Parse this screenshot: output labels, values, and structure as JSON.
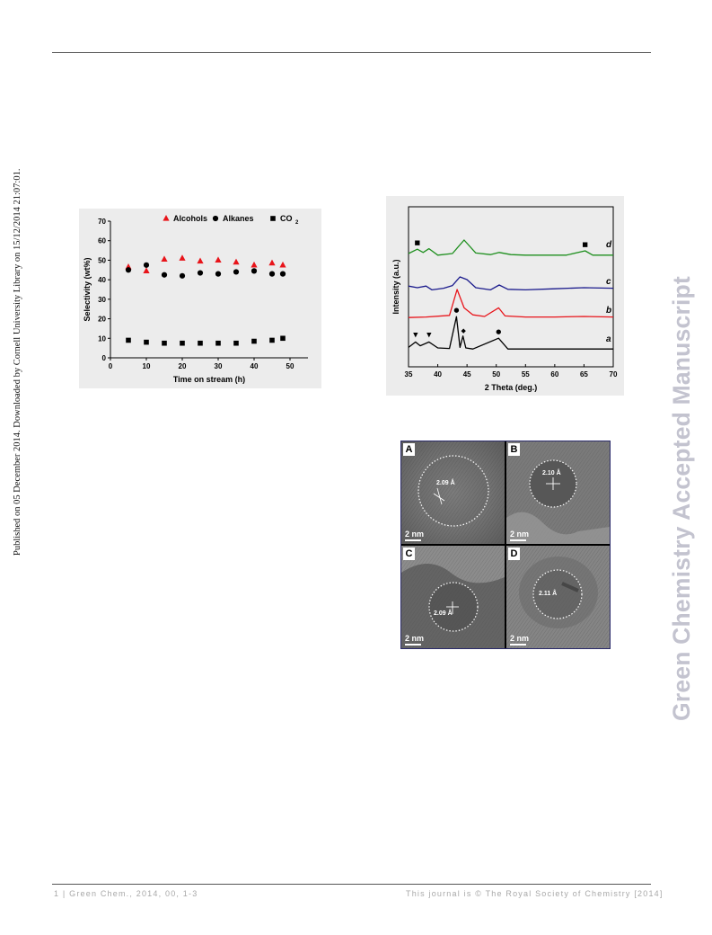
{
  "page": {
    "side_note": "Published on 05 December 2014. Downloaded by Cornell University Library on 15/12/2014 21:07:01.",
    "watermark": "Green Chemistry Accepted Manuscript",
    "footer_left": "1 | Green Chem., 2014, 00, 1-3",
    "footer_right": "This journal is © The Royal Society of Chemistry [2014]"
  },
  "colors": {
    "alcohols": "#e8141a",
    "xrd_a": "#000000",
    "xrd_b": "#e8141a",
    "xrd_c": "#1a1a8c",
    "xrd_d": "#1e8f1e",
    "watermark": "#c3c3cf"
  },
  "chart_data": [
    {
      "type": "scatter",
      "title": "",
      "xlabel": "Time on stream (h)",
      "ylabel": "Selectivity (wt%)",
      "xlim": [
        0,
        55
      ],
      "ylim": [
        0,
        70
      ],
      "xticks": [
        0,
        10,
        20,
        30,
        40,
        50
      ],
      "yticks": [
        0,
        10,
        20,
        30,
        40,
        50,
        60,
        70
      ],
      "legend_position": "top",
      "legend_sub": "2",
      "series": [
        {
          "name": "Alcohols",
          "marker": "triangle",
          "x": [
            5,
            10,
            15,
            20,
            25,
            30,
            35,
            40,
            45,
            48
          ],
          "y": [
            46.5,
            44.5,
            50.5,
            51,
            49.5,
            50,
            49,
            47.5,
            48.5,
            47.5
          ]
        },
        {
          "name": "Alkanes",
          "marker": "circle",
          "x": [
            5,
            10,
            15,
            20,
            25,
            30,
            35,
            40,
            45,
            48
          ],
          "y": [
            45,
            47.5,
            42.5,
            42,
            43.5,
            43,
            44,
            44.5,
            43,
            43
          ]
        },
        {
          "name": "CO",
          "marker": "square",
          "x": [
            5,
            10,
            15,
            20,
            25,
            30,
            35,
            40,
            45,
            48
          ],
          "y": [
            9,
            8,
            7.5,
            7.5,
            7.5,
            7.5,
            7.5,
            8.5,
            9,
            10
          ]
        }
      ]
    },
    {
      "type": "line",
      "title": "",
      "xlabel": "2 Theta (deg.)",
      "ylabel": "Intensity (a.u.)",
      "xlim": [
        35,
        70
      ],
      "xticks": [
        35,
        40,
        45,
        50,
        55,
        60,
        65,
        70
      ],
      "series_labels": [
        "a",
        "b",
        "c",
        "d"
      ],
      "series": [
        {
          "name": "a",
          "x": [
            35,
            36.2,
            37,
            38.5,
            40,
            42,
            43.2,
            43.8,
            44.3,
            44.8,
            46,
            50.4,
            52,
            55,
            60,
            65,
            70
          ],
          "y": [
            0.6,
            1.6,
            0.9,
            1.6,
            0.5,
            0.4,
            6.3,
            0.6,
            2.7,
            0.5,
            0.3,
            2.3,
            0.3,
            0.3,
            0.3,
            0.3,
            0.3
          ]
        },
        {
          "name": "b",
          "x": [
            35,
            38,
            42,
            43.3,
            44.5,
            46,
            48,
            50.4,
            51.5,
            55,
            60,
            65,
            70
          ],
          "y": [
            0.8,
            0.9,
            1.2,
            6.0,
            2.6,
            1.3,
            1.0,
            2.6,
            1.1,
            0.9,
            0.9,
            1.0,
            0.9
          ]
        },
        {
          "name": "c",
          "x": [
            35,
            36.5,
            38,
            39,
            41,
            42.5,
            43.8,
            45,
            46.5,
            49,
            50.5,
            52,
            55,
            60,
            65,
            70
          ],
          "y": [
            1.3,
            1.0,
            1.3,
            0.6,
            0.9,
            1.4,
            3.0,
            2.5,
            1.0,
            0.6,
            1.5,
            0.7,
            0.6,
            0.8,
            1.0,
            0.9
          ]
        },
        {
          "name": "d",
          "x": [
            35,
            36.5,
            37.5,
            38.5,
            40,
            42.5,
            44.5,
            46.5,
            49,
            50.5,
            52.5,
            55,
            62,
            65.2,
            66.5,
            70
          ],
          "y": [
            0.5,
            1.3,
            0.7,
            1.4,
            0.2,
            0.5,
            3.0,
            0.6,
            0.3,
            0.7,
            0.3,
            0.2,
            0.2,
            1.0,
            0.2,
            0.2
          ]
        }
      ],
      "peak_markers": [
        "■",
        "▼",
        "●",
        "◆"
      ]
    }
  ],
  "figure_tem": {
    "panels": [
      {
        "letter": "A",
        "d_spacing": "2.09 Å",
        "scale": "2 nm"
      },
      {
        "letter": "B",
        "d_spacing": "2.10 Å",
        "scale": "2 nm"
      },
      {
        "letter": "C",
        "d_spacing": "2.09 Å",
        "scale": "2 nm"
      },
      {
        "letter": "D",
        "d_spacing": "2.11 Å",
        "scale": "2 nm"
      }
    ]
  }
}
